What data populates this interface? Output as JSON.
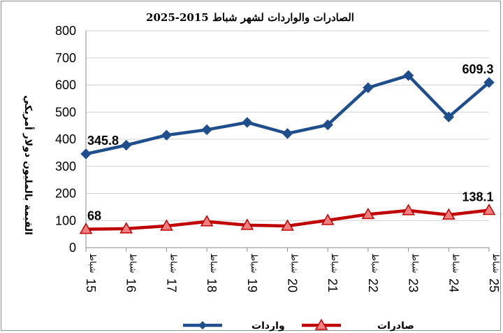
{
  "chart_data": {
    "type": "line",
    "title": "الصادرات والواردات لشهر شباط 2015-2025",
    "ylabel": "القيمة بالمليون دولار أمريكي",
    "x_word": "شباط",
    "categories": [
      "15",
      "16",
      "17",
      "18",
      "19",
      "20",
      "21",
      "22",
      "23",
      "24",
      "25"
    ],
    "ylim": [
      0,
      800
    ],
    "yticks": [
      "0",
      "100",
      "200",
      "300",
      "400",
      "500",
      "600",
      "700",
      "800"
    ],
    "grid": true,
    "legend_position": "bottom",
    "series": [
      {
        "name": "واردات",
        "color": "#1f4e8c",
        "marker": "diamond",
        "values": [
          345.8,
          378,
          415,
          435,
          462,
          421,
          453,
          590,
          635,
          482,
          609.3
        ]
      },
      {
        "name": "صادرات",
        "color": "#c00000",
        "marker_fill": "#f08080",
        "marker": "triangle",
        "values": [
          68,
          70,
          80,
          96,
          83,
          80,
          101,
          123,
          137,
          121,
          138.1
        ]
      }
    ],
    "data_labels": [
      {
        "series": 0,
        "index": 0,
        "text": "345.8"
      },
      {
        "series": 0,
        "index": 10,
        "text": "609.3"
      },
      {
        "series": 1,
        "index": 0,
        "text": "68"
      },
      {
        "series": 1,
        "index": 10,
        "text": "138.1"
      }
    ]
  }
}
